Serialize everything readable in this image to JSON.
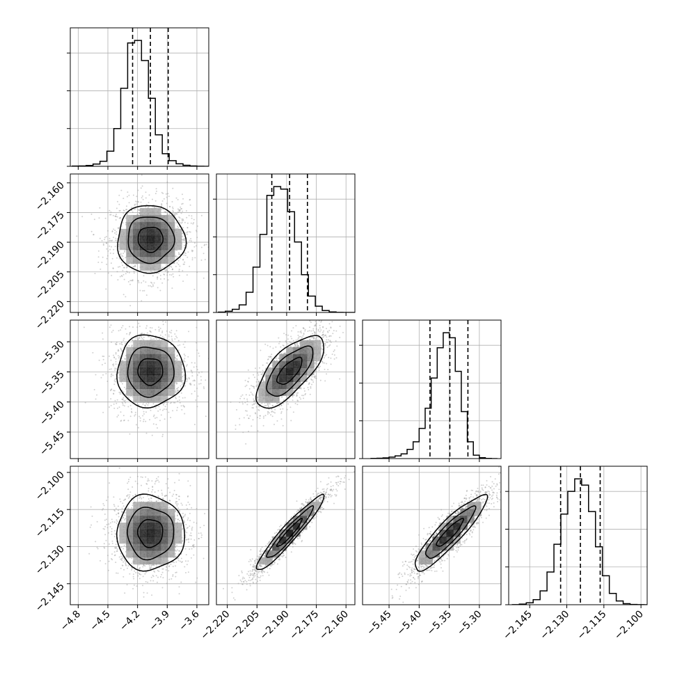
{
  "chart_data": {
    "type": "corner",
    "grid": true,
    "parameters": [
      {
        "range": [
          -4.88,
          -3.48
        ],
        "ticks": [
          -4.8,
          -4.5,
          -4.2,
          -3.9,
          -3.6
        ],
        "tick_labels": [
          "−4.8",
          "−4.5",
          "−4.2",
          "−3.9",
          "−3.6"
        ],
        "quantiles": [
          -4.25,
          -4.07,
          -3.89
        ],
        "hist_edges_start": -4.86,
        "hist_edges_step": 0.07,
        "hist_counts": [
          2,
          3,
          7,
          18,
          40,
          120,
          300,
          620,
          980,
          1000,
          840,
          540,
          250,
          100,
          45,
          20,
          8,
          3,
          1,
          0
        ]
      },
      {
        "range": [
          -2.2255,
          -2.1555
        ],
        "ticks": [
          -2.22,
          -2.205,
          -2.19,
          -2.175,
          -2.16
        ],
        "tick_labels": [
          "−2.220",
          "−2.205",
          "−2.190",
          "−2.175",
          "−2.160"
        ],
        "quantiles": [
          -2.1975,
          -2.1885,
          -2.1795
        ],
        "hist_edges_start": -2.2245,
        "hist_edges_step": 0.0035,
        "hist_counts": [
          3,
          10,
          25,
          60,
          160,
          360,
          620,
          930,
          1000,
          980,
          800,
          560,
          300,
          130,
          50,
          15,
          4,
          1,
          0,
          0
        ]
      },
      {
        "range": [
          -5.494,
          -5.264
        ],
        "ticks": [
          -5.45,
          -5.4,
          -5.35,
          -5.3
        ],
        "tick_labels": [
          "−5.45",
          "−5.40",
          "−5.35",
          "−5.30"
        ],
        "quantiles": [
          -5.382,
          -5.349,
          -5.319
        ],
        "hist_edges_start": -5.48,
        "hist_edges_step": 0.01,
        "hist_counts": [
          1,
          2,
          4,
          9,
          16,
          28,
          55,
          100,
          180,
          300,
          480,
          660,
          750,
          720,
          520,
          280,
          100,
          20,
          5,
          1,
          0
        ]
      },
      {
        "range": [
          -2.1535,
          -2.0975
        ],
        "ticks": [
          -2.145,
          -2.13,
          -2.115,
          -2.1
        ],
        "tick_labels": [
          "−2.145",
          "−2.130",
          "−2.115",
          "−2.100"
        ],
        "quantiles": [
          -2.1325,
          -2.1245,
          -2.1165
        ],
        "hist_edges_start": -2.152,
        "hist_edges_step": 0.0028,
        "hist_counts": [
          1,
          5,
          15,
          40,
          110,
          260,
          480,
          720,
          900,
          1000,
          950,
          740,
          460,
          230,
          90,
          30,
          8,
          2,
          1,
          0
        ]
      }
    ],
    "correlations": [
      [
        1,
        0,
        0,
        0
      ],
      [
        0,
        1,
        0.7,
        0.95
      ],
      [
        0,
        0.7,
        1,
        0.9
      ],
      [
        0,
        0.95,
        0.9,
        1
      ]
    ]
  }
}
